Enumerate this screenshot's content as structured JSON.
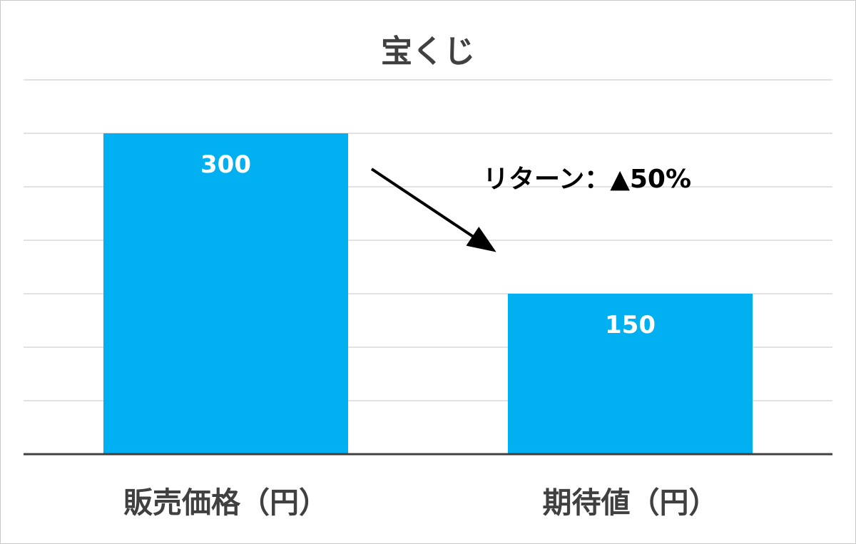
{
  "chart_data": {
    "type": "bar",
    "title": "宝くじ",
    "categories": [
      "販売価格（円）",
      "期待値（円）"
    ],
    "values": [
      300,
      150
    ],
    "ylim": [
      0,
      350
    ],
    "y_gridline_step": 50,
    "grid": true,
    "bar_color": "#00B0F0",
    "annotation": "リターン：▲50%"
  }
}
